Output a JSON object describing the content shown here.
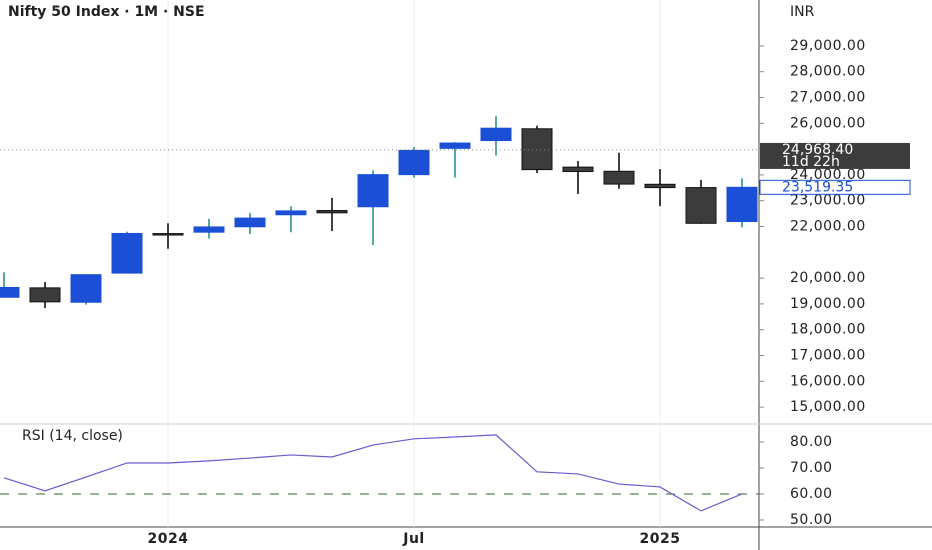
{
  "chart_data": [
    {
      "type": "candlestick",
      "title": "Nifty 50 Index · 1M · NSE",
      "currency": "INR",
      "categories": [
        null,
        null,
        null,
        null,
        "2024",
        null,
        null,
        null,
        null,
        null,
        "Jul",
        null,
        null,
        null,
        null,
        null,
        "2025",
        null,
        null
      ],
      "open": [
        19258,
        19622,
        19064,
        20194,
        21727,
        21780,
        21990,
        22455,
        22619,
        22766,
        24010,
        25030,
        25333,
        25788,
        24302,
        24140,
        23637,
        23509,
        22194
      ],
      "high": [
        20222,
        19849,
        20158,
        21801,
        22124,
        22297,
        22526,
        22783,
        23111,
        24174,
        25078,
        25268,
        26277,
        25908,
        24538,
        24858,
        24226,
        23807,
        23869
      ],
      "low": [
        19255,
        18837,
        18973,
        20184,
        21137,
        21530,
        21710,
        21778,
        21821,
        21281,
        23893,
        23894,
        24754,
        24073,
        23263,
        23460,
        22787,
        22104,
        21965
      ],
      "close": [
        19638,
        19080,
        20133,
        21731,
        21726,
        21983,
        22327,
        22605,
        22531,
        24011,
        24951,
        25236,
        25811,
        24205,
        24131,
        23645,
        23508,
        22125,
        23519
      ],
      "up_color": "#1a4fd6",
      "down_color": "#3c3c3c",
      "ylim": [
        14500,
        30780
      ],
      "yticks": [
        {
          "value": 29000,
          "label": "29,000.00"
        },
        {
          "value": 28000,
          "label": "28,000.00"
        },
        {
          "value": 27000,
          "label": "27,000.00"
        },
        {
          "value": 26000,
          "label": "26,000.00"
        },
        {
          "value": 24000,
          "label": "24,000.00"
        },
        {
          "value": 23000,
          "label": "23,000.00"
        },
        {
          "value": 22000,
          "label": "22,000.00"
        },
        {
          "value": 20000,
          "label": "20,000.00"
        },
        {
          "value": 19000,
          "label": "19,000.00"
        },
        {
          "value": 18000,
          "label": "18,000.00"
        },
        {
          "value": 17000,
          "label": "17,000.00"
        },
        {
          "value": 16000,
          "label": "16,000.00"
        },
        {
          "value": 15000,
          "label": "15,000.00"
        }
      ],
      "price_labels": [
        {
          "value": 24968.4,
          "label": "24,968.40",
          "sublabel": "11d 22h",
          "color": "#3c3c3c"
        },
        {
          "value": 23519.35,
          "label": "23,519.35",
          "color": "#1a4fd6"
        }
      ]
    },
    {
      "type": "line",
      "title": "RSI (14, close)",
      "color": "#6a5acd",
      "values": [
        66.2,
        61.2,
        66.5,
        71.9,
        71.9,
        72.7,
        73.8,
        75.0,
        74.2,
        78.8,
        81.2,
        81.9,
        82.7,
        68.5,
        67.7,
        63.8,
        62.7,
        53.5,
        60.0
      ],
      "ylim": [
        47.3,
        86.5
      ],
      "yticks": [
        {
          "value": 80,
          "label": "80.00"
        },
        {
          "value": 70,
          "label": "70.00"
        },
        {
          "value": 60,
          "label": "60.00"
        },
        {
          "value": 50,
          "label": "50.00"
        }
      ],
      "hline": 60,
      "hline_color": "#2e6b2e"
    }
  ]
}
